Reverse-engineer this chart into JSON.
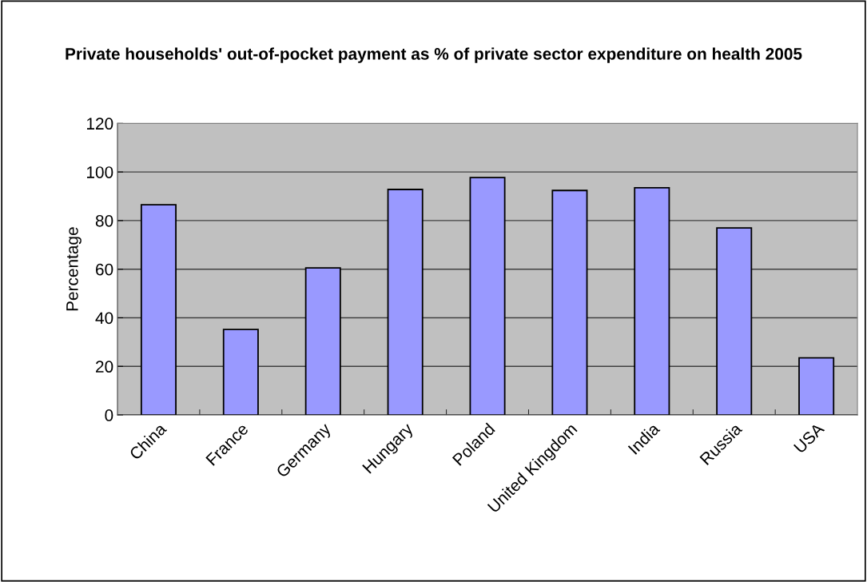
{
  "chart_data": {
    "type": "bar",
    "title": "Private households' out-of-pocket payment as % of private sector expenditure on health 2005",
    "ylabel": "Percentage",
    "categories": [
      "China",
      "France",
      "Germany",
      "Hungary",
      "Poland",
      "United Kingdom",
      "India",
      "Russia",
      "USA"
    ],
    "values": [
      86.5,
      35.2,
      60.5,
      92.8,
      97.7,
      92.4,
      93.5,
      77.0,
      23.5
    ],
    "color": "#9999ff",
    "ylim": [
      0,
      120
    ],
    "yticks": [
      0,
      20,
      40,
      60,
      80,
      100,
      120
    ],
    "grid": "y"
  }
}
